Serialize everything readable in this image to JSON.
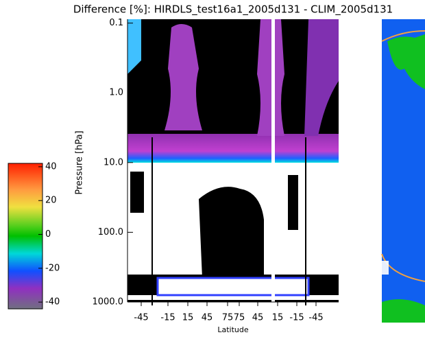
{
  "chart_data": {
    "type": "heatmap",
    "title": "Difference [%]: HIRDLS_test16a1_2005d131 - CLIM_2005d131",
    "y_label": "Pressure [hPa]",
    "x_label": "Latitude",
    "y_scale": "log",
    "ylim": [
      1000,
      0.09
    ],
    "yticks": [
      0.1,
      {
        "value": 1,
        "label": "1.0"
      },
      {
        "value": 10,
        "label": "10.0"
      },
      {
        "value": 100,
        "label": "100.0"
      },
      {
        "value": 1000,
        "label": "1000.0"
      }
    ],
    "categories": [
      "-45",
      "-15",
      "15",
      "45",
      "75",
      "75",
      "45",
      "15",
      "-15",
      "-45"
    ],
    "colorbar": {
      "lim": [
        -44,
        42
      ],
      "ticks": [
        40,
        20,
        0,
        -20,
        -40
      ]
    }
  }
}
